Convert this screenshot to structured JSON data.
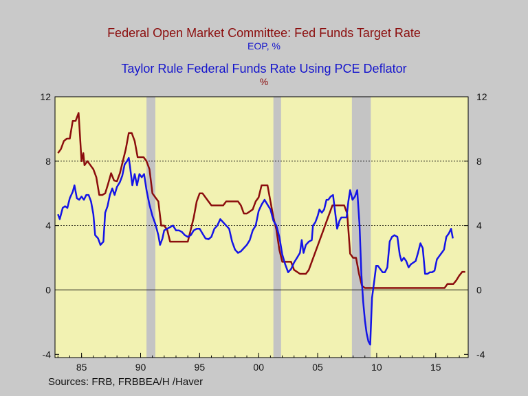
{
  "titles": {
    "line1": "Federal Open Market Committee: Fed Funds Target Rate",
    "line2": "EOP, %",
    "line3": "Taylor Rule Federal Funds Rate Using PCE Deflator",
    "line4": "%"
  },
  "colors": {
    "background": "#c9c9c9",
    "plot": "#f2f2b2",
    "recession": "#c4c4c4",
    "fed_funds": "#8b0d0d",
    "taylor": "#1414e6",
    "blue_title": "#1414cc"
  },
  "source": "Sources:   FRB, FRBBEA/H /Haver",
  "chart_data": {
    "type": "line",
    "title": "",
    "xlim": [
      1982.75,
      2017.75
    ],
    "ylim": [
      -4.2,
      12
    ],
    "x_ticks": [
      {
        "value": 1985,
        "label": "85"
      },
      {
        "value": 1990,
        "label": "90"
      },
      {
        "value": 1995,
        "label": "95"
      },
      {
        "value": 2000,
        "label": "00"
      },
      {
        "value": 2005,
        "label": "05"
      },
      {
        "value": 2010,
        "label": "10"
      },
      {
        "value": 2015,
        "label": "15"
      }
    ],
    "y_ticks": [
      {
        "value": 12,
        "label": "12"
      },
      {
        "value": 8,
        "label": "8"
      },
      {
        "value": 4,
        "label": "4"
      },
      {
        "value": 0,
        "label": "0"
      },
      {
        "value": -4,
        "label": "-4"
      }
    ],
    "dashed_gridlines": [
      8,
      4
    ],
    "solid_gridlines": [
      0
    ],
    "recessions": [
      [
        1990.5,
        1991.25
      ],
      [
        2001.25,
        2001.9
      ],
      [
        2007.9,
        2009.5
      ]
    ],
    "series": [
      {
        "name": "Federal Open Market Committee: Fed Funds Target Rate",
        "color_key": "fed_funds",
        "points": [
          [
            1983.0,
            8.5
          ],
          [
            1983.25,
            8.75
          ],
          [
            1983.5,
            9.25
          ],
          [
            1983.75,
            9.4
          ],
          [
            1984.0,
            9.4
          ],
          [
            1984.25,
            10.5
          ],
          [
            1984.5,
            10.5
          ],
          [
            1984.75,
            11.0
          ],
          [
            1985.0,
            8.0
          ],
          [
            1985.15,
            8.5
          ],
          [
            1985.25,
            7.75
          ],
          [
            1985.5,
            8.0
          ],
          [
            1985.75,
            7.75
          ],
          [
            1986.0,
            7.5
          ],
          [
            1986.25,
            7.0
          ],
          [
            1986.5,
            5.9
          ],
          [
            1986.75,
            5.9
          ],
          [
            1987.0,
            6.0
          ],
          [
            1987.25,
            6.6
          ],
          [
            1987.5,
            7.25
          ],
          [
            1987.75,
            6.8
          ],
          [
            1988.0,
            6.75
          ],
          [
            1988.25,
            7.25
          ],
          [
            1988.5,
            8.0
          ],
          [
            1988.75,
            8.75
          ],
          [
            1989.0,
            9.75
          ],
          [
            1989.25,
            9.75
          ],
          [
            1989.5,
            9.25
          ],
          [
            1989.75,
            8.25
          ],
          [
            1990.0,
            8.25
          ],
          [
            1990.25,
            8.25
          ],
          [
            1990.5,
            8.0
          ],
          [
            1990.75,
            7.5
          ],
          [
            1991.0,
            6.0
          ],
          [
            1991.25,
            5.75
          ],
          [
            1991.5,
            5.5
          ],
          [
            1991.75,
            4.0
          ],
          [
            1992.0,
            4.0
          ],
          [
            1992.25,
            3.75
          ],
          [
            1992.5,
            3.0
          ],
          [
            1993.0,
            3.0
          ],
          [
            1993.5,
            3.0
          ],
          [
            1994.0,
            3.0
          ],
          [
            1994.25,
            3.75
          ],
          [
            1994.5,
            4.5
          ],
          [
            1994.75,
            5.5
          ],
          [
            1995.0,
            6.0
          ],
          [
            1995.25,
            6.0
          ],
          [
            1995.5,
            5.75
          ],
          [
            1995.75,
            5.5
          ],
          [
            1996.0,
            5.25
          ],
          [
            1996.5,
            5.25
          ],
          [
            1997.0,
            5.25
          ],
          [
            1997.25,
            5.5
          ],
          [
            1997.75,
            5.5
          ],
          [
            1998.25,
            5.5
          ],
          [
            1998.5,
            5.25
          ],
          [
            1998.75,
            4.75
          ],
          [
            1999.0,
            4.75
          ],
          [
            1999.5,
            5.0
          ],
          [
            1999.75,
            5.5
          ],
          [
            2000.0,
            5.75
          ],
          [
            2000.25,
            6.5
          ],
          [
            2000.75,
            6.5
          ],
          [
            2001.0,
            5.5
          ],
          [
            2001.25,
            4.5
          ],
          [
            2001.5,
            3.75
          ],
          [
            2001.75,
            2.5
          ],
          [
            2002.0,
            1.75
          ],
          [
            2002.5,
            1.75
          ],
          [
            2002.75,
            1.75
          ],
          [
            2003.0,
            1.25
          ],
          [
            2003.5,
            1.0
          ],
          [
            2004.0,
            1.0
          ],
          [
            2004.25,
            1.25
          ],
          [
            2004.5,
            1.75
          ],
          [
            2004.75,
            2.25
          ],
          [
            2005.0,
            2.75
          ],
          [
            2005.25,
            3.25
          ],
          [
            2005.5,
            3.75
          ],
          [
            2005.75,
            4.25
          ],
          [
            2006.0,
            4.75
          ],
          [
            2006.25,
            5.25
          ],
          [
            2006.75,
            5.25
          ],
          [
            2007.25,
            5.25
          ],
          [
            2007.5,
            4.75
          ],
          [
            2007.75,
            2.25
          ],
          [
            2008.0,
            2.0
          ],
          [
            2008.25,
            2.0
          ],
          [
            2008.5,
            1.0
          ],
          [
            2008.75,
            0.25
          ],
          [
            2009.0,
            0.125
          ],
          [
            2010.0,
            0.125
          ],
          [
            2012.0,
            0.125
          ],
          [
            2014.0,
            0.125
          ],
          [
            2015.75,
            0.125
          ],
          [
            2016.0,
            0.375
          ],
          [
            2016.5,
            0.375
          ],
          [
            2016.75,
            0.6
          ],
          [
            2017.0,
            0.9
          ],
          [
            2017.25,
            1.125
          ],
          [
            2017.5,
            1.125
          ]
        ]
      },
      {
        "name": "Taylor Rule Federal Funds Rate Using PCE Deflator",
        "color_key": "taylor",
        "points": [
          [
            1983.0,
            4.7
          ],
          [
            1983.15,
            4.4
          ],
          [
            1983.4,
            5.1
          ],
          [
            1983.6,
            5.2
          ],
          [
            1983.8,
            5.1
          ],
          [
            1984.0,
            5.7
          ],
          [
            1984.25,
            6.1
          ],
          [
            1984.4,
            6.5
          ],
          [
            1984.6,
            5.7
          ],
          [
            1984.8,
            5.6
          ],
          [
            1985.0,
            5.8
          ],
          [
            1985.2,
            5.6
          ],
          [
            1985.4,
            5.9
          ],
          [
            1985.6,
            5.9
          ],
          [
            1985.8,
            5.5
          ],
          [
            1986.0,
            4.7
          ],
          [
            1986.15,
            3.4
          ],
          [
            1986.4,
            3.2
          ],
          [
            1986.6,
            2.8
          ],
          [
            1986.85,
            3.0
          ],
          [
            1987.0,
            4.8
          ],
          [
            1987.2,
            5.2
          ],
          [
            1987.4,
            5.9
          ],
          [
            1987.6,
            6.3
          ],
          [
            1987.8,
            5.9
          ],
          [
            1988.0,
            6.4
          ],
          [
            1988.25,
            6.7
          ],
          [
            1988.45,
            7.1
          ],
          [
            1988.65,
            7.8
          ],
          [
            1988.85,
            8.0
          ],
          [
            1989.0,
            8.2
          ],
          [
            1989.1,
            7.7
          ],
          [
            1989.3,
            6.5
          ],
          [
            1989.5,
            7.2
          ],
          [
            1989.7,
            6.5
          ],
          [
            1989.9,
            7.2
          ],
          [
            1990.1,
            7.0
          ],
          [
            1990.3,
            7.2
          ],
          [
            1990.5,
            6.2
          ],
          [
            1990.75,
            5.3
          ],
          [
            1991.0,
            4.6
          ],
          [
            1991.25,
            4.1
          ],
          [
            1991.5,
            3.4
          ],
          [
            1991.65,
            2.8
          ],
          [
            1991.85,
            3.2
          ],
          [
            1992.0,
            3.7
          ],
          [
            1992.25,
            3.8
          ],
          [
            1992.5,
            3.9
          ],
          [
            1992.75,
            4.0
          ],
          [
            1993.0,
            3.7
          ],
          [
            1993.25,
            3.7
          ],
          [
            1993.5,
            3.6
          ],
          [
            1993.75,
            3.4
          ],
          [
            1994.0,
            3.3
          ],
          [
            1994.25,
            3.4
          ],
          [
            1994.5,
            3.7
          ],
          [
            1994.75,
            3.8
          ],
          [
            1995.0,
            3.8
          ],
          [
            1995.25,
            3.5
          ],
          [
            1995.5,
            3.2
          ],
          [
            1995.75,
            3.15
          ],
          [
            1996.0,
            3.3
          ],
          [
            1996.25,
            3.8
          ],
          [
            1996.5,
            4.0
          ],
          [
            1996.75,
            4.4
          ],
          [
            1997.0,
            4.2
          ],
          [
            1997.25,
            4.0
          ],
          [
            1997.5,
            3.8
          ],
          [
            1997.75,
            3.0
          ],
          [
            1998.0,
            2.5
          ],
          [
            1998.25,
            2.3
          ],
          [
            1998.5,
            2.4
          ],
          [
            1998.75,
            2.6
          ],
          [
            1999.0,
            2.8
          ],
          [
            1999.25,
            3.1
          ],
          [
            1999.5,
            3.7
          ],
          [
            1999.75,
            4.0
          ],
          [
            2000.0,
            4.9
          ],
          [
            2000.25,
            5.3
          ],
          [
            2000.5,
            5.6
          ],
          [
            2000.75,
            5.3
          ],
          [
            2001.0,
            5.0
          ],
          [
            2001.25,
            4.3
          ],
          [
            2001.5,
            4.0
          ],
          [
            2001.75,
            3.3
          ],
          [
            2002.0,
            2.2
          ],
          [
            2002.25,
            1.6
          ],
          [
            2002.5,
            1.1
          ],
          [
            2002.75,
            1.3
          ],
          [
            2003.0,
            1.7
          ],
          [
            2003.25,
            2.0
          ],
          [
            2003.5,
            2.3
          ],
          [
            2003.65,
            3.1
          ],
          [
            2003.8,
            2.3
          ],
          [
            2004.0,
            2.8
          ],
          [
            2004.25,
            3.0
          ],
          [
            2004.5,
            3.1
          ],
          [
            2004.6,
            4.0
          ],
          [
            2004.8,
            4.2
          ],
          [
            2005.0,
            4.6
          ],
          [
            2005.15,
            5.0
          ],
          [
            2005.35,
            4.8
          ],
          [
            2005.55,
            5.0
          ],
          [
            2005.75,
            5.6
          ],
          [
            2005.9,
            5.6
          ],
          [
            2006.1,
            5.8
          ],
          [
            2006.3,
            5.9
          ],
          [
            2006.45,
            5.0
          ],
          [
            2006.65,
            3.8
          ],
          [
            2006.85,
            4.3
          ],
          [
            2007.0,
            4.5
          ],
          [
            2007.25,
            4.5
          ],
          [
            2007.45,
            4.5
          ],
          [
            2007.6,
            5.5
          ],
          [
            2007.75,
            6.2
          ],
          [
            2007.95,
            5.6
          ],
          [
            2008.15,
            5.8
          ],
          [
            2008.35,
            6.2
          ],
          [
            2008.55,
            4.0
          ],
          [
            2008.7,
            1.0
          ],
          [
            2008.85,
            -0.7
          ],
          [
            2009.0,
            -1.9
          ],
          [
            2009.15,
            -2.7
          ],
          [
            2009.3,
            -3.2
          ],
          [
            2009.45,
            -3.4
          ],
          [
            2009.6,
            -0.5
          ],
          [
            2009.8,
            0.6
          ],
          [
            2009.95,
            1.5
          ],
          [
            2010.1,
            1.5
          ],
          [
            2010.3,
            1.3
          ],
          [
            2010.5,
            1.1
          ],
          [
            2010.7,
            1.1
          ],
          [
            2010.9,
            1.4
          ],
          [
            2011.1,
            3.0
          ],
          [
            2011.3,
            3.3
          ],
          [
            2011.5,
            3.4
          ],
          [
            2011.75,
            3.3
          ],
          [
            2011.95,
            2.2
          ],
          [
            2012.1,
            1.8
          ],
          [
            2012.3,
            2.0
          ],
          [
            2012.5,
            1.8
          ],
          [
            2012.7,
            1.4
          ],
          [
            2012.9,
            1.6
          ],
          [
            2013.1,
            1.7
          ],
          [
            2013.3,
            1.8
          ],
          [
            2013.5,
            2.3
          ],
          [
            2013.7,
            2.9
          ],
          [
            2013.9,
            2.6
          ],
          [
            2014.1,
            1.0
          ],
          [
            2014.3,
            1.0
          ],
          [
            2014.5,
            1.1
          ],
          [
            2014.7,
            1.1
          ],
          [
            2014.9,
            1.2
          ],
          [
            2015.1,
            1.9
          ],
          [
            2015.3,
            2.1
          ],
          [
            2015.5,
            2.3
          ],
          [
            2015.7,
            2.5
          ],
          [
            2015.9,
            3.3
          ],
          [
            2016.1,
            3.5
          ],
          [
            2016.3,
            3.8
          ],
          [
            2016.45,
            3.2
          ]
        ]
      }
    ]
  }
}
